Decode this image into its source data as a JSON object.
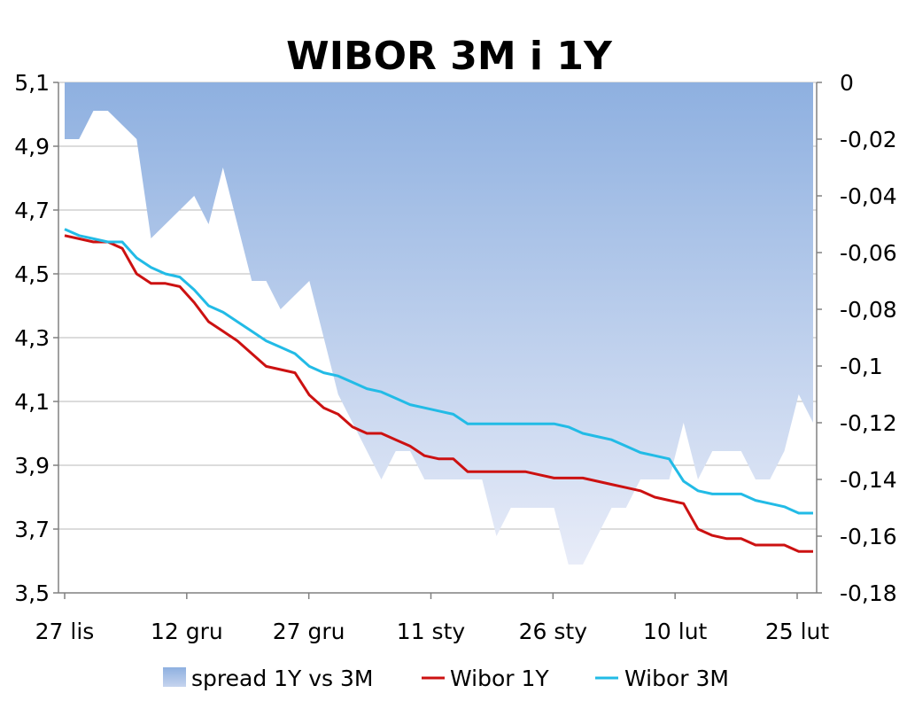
{
  "chart_data": {
    "type": "line",
    "title": "WIBOR 3M i 1Y",
    "x_tick_labels": [
      "27 lis",
      "12 gru",
      "27 gru",
      "11 sty",
      "26 sty",
      "10 lut",
      "25 lut"
    ],
    "y_left": {
      "ylim": [
        3.5,
        5.1
      ],
      "ticks": [
        5.1,
        4.9,
        4.7,
        4.5,
        4.3,
        4.1,
        3.9,
        3.7,
        3.5
      ],
      "tick_labels": [
        "5,1",
        "4,9",
        "4,7",
        "4,5",
        "4,3",
        "4,1",
        "3,9",
        "3,7",
        "3,5"
      ]
    },
    "y_right": {
      "ylim": [
        -0.18,
        0
      ],
      "ticks": [
        0,
        -0.02,
        -0.04,
        -0.06,
        -0.08,
        -0.1,
        -0.12,
        -0.14,
        -0.16,
        -0.18
      ],
      "tick_labels": [
        "0",
        "-0,02",
        "-0,04",
        "-0,06",
        "-0,08",
        "-0,1",
        "-0,12",
        "-0,14",
        "-0,16",
        "-0,18"
      ]
    },
    "legend_position": "bottom",
    "grid": "horizontal",
    "series": [
      {
        "name": "spread 1Y vs 3M",
        "type": "area",
        "axis": "right",
        "color": "#8eb0e0",
        "values": [
          -0.02,
          -0.02,
          -0.01,
          -0.01,
          -0.015,
          -0.02,
          -0.055,
          -0.05,
          -0.045,
          -0.04,
          -0.05,
          -0.03,
          -0.05,
          -0.07,
          -0.07,
          -0.08,
          -0.075,
          -0.07,
          -0.09,
          -0.11,
          -0.12,
          -0.13,
          -0.14,
          -0.13,
          -0.13,
          -0.14,
          -0.14,
          -0.14,
          -0.14,
          -0.14,
          -0.16,
          -0.15,
          -0.15,
          -0.15,
          -0.15,
          -0.17,
          -0.17,
          -0.16,
          -0.15,
          -0.15,
          -0.14,
          -0.14,
          -0.14,
          -0.12,
          -0.14,
          -0.13,
          -0.13,
          -0.13,
          -0.14,
          -0.14,
          -0.13,
          -0.11,
          -0.12
        ]
      },
      {
        "name": "Wibor 1Y",
        "type": "line",
        "axis": "left",
        "color": "#cc1111",
        "values": [
          4.62,
          4.61,
          4.6,
          4.6,
          4.58,
          4.5,
          4.47,
          4.47,
          4.46,
          4.41,
          4.35,
          4.32,
          4.29,
          4.25,
          4.21,
          4.2,
          4.19,
          4.12,
          4.08,
          4.06,
          4.02,
          4.0,
          4.0,
          3.98,
          3.96,
          3.93,
          3.92,
          3.92,
          3.88,
          3.88,
          3.88,
          3.88,
          3.88,
          3.87,
          3.86,
          3.86,
          3.86,
          3.85,
          3.84,
          3.83,
          3.82,
          3.8,
          3.79,
          3.78,
          3.7,
          3.68,
          3.67,
          3.67,
          3.65,
          3.65,
          3.65,
          3.63,
          3.63
        ]
      },
      {
        "name": "Wibor 3M",
        "type": "line",
        "axis": "left",
        "color": "#22bbe6",
        "values": [
          4.64,
          4.62,
          4.61,
          4.6,
          4.6,
          4.55,
          4.52,
          4.5,
          4.49,
          4.45,
          4.4,
          4.38,
          4.35,
          4.32,
          4.29,
          4.27,
          4.25,
          4.21,
          4.19,
          4.18,
          4.16,
          4.14,
          4.13,
          4.11,
          4.09,
          4.08,
          4.07,
          4.06,
          4.03,
          4.03,
          4.03,
          4.03,
          4.03,
          4.03,
          4.03,
          4.02,
          4.0,
          3.99,
          3.98,
          3.96,
          3.94,
          3.93,
          3.92,
          3.85,
          3.82,
          3.81,
          3.81,
          3.81,
          3.79,
          3.78,
          3.77,
          3.75,
          3.75
        ]
      }
    ]
  }
}
